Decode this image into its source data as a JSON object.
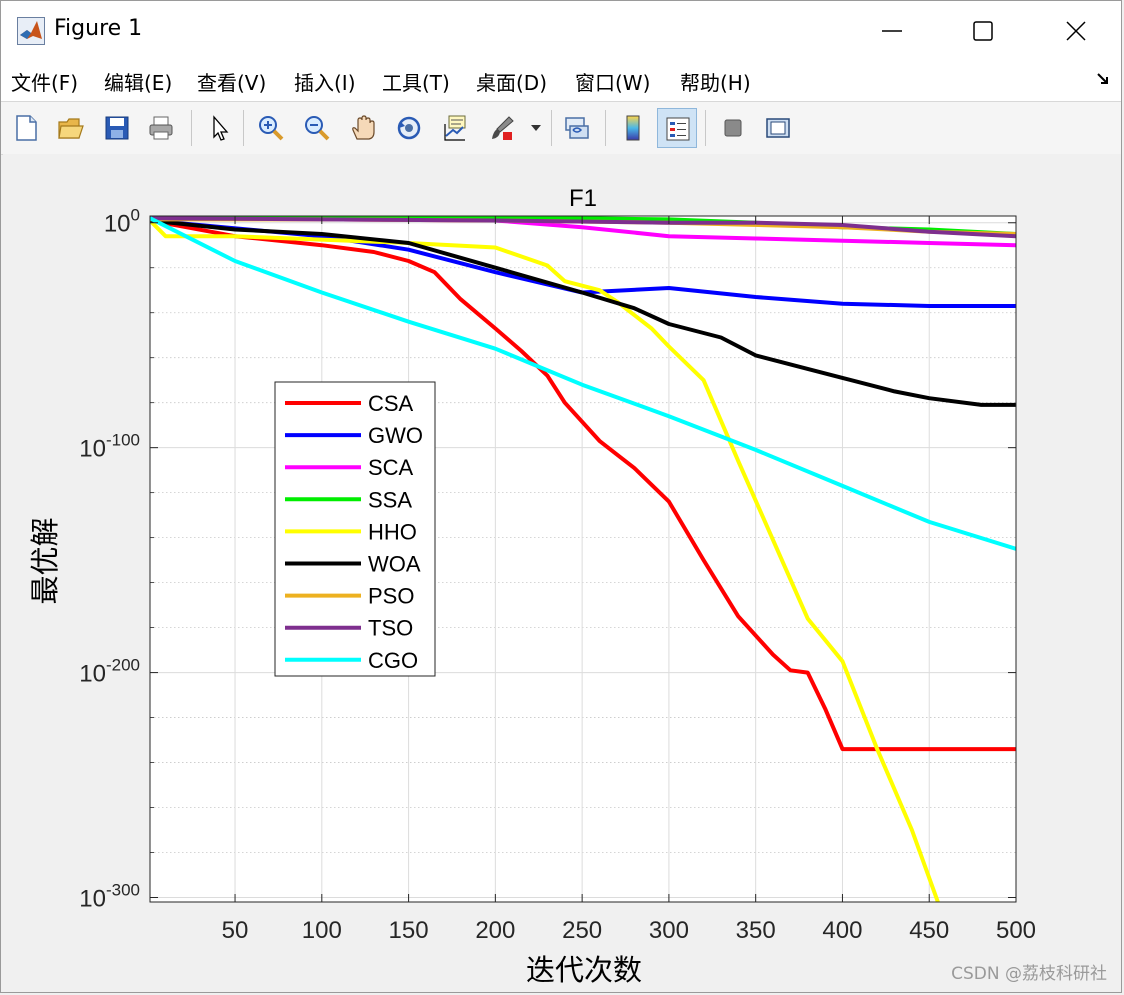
{
  "window": {
    "title": "Figure 1",
    "controls": [
      "minimize",
      "maximize",
      "close"
    ]
  },
  "menubar": {
    "items": [
      "文件(F)",
      "编辑(E)",
      "查看(V)",
      "插入(I)",
      "工具(T)",
      "桌面(D)",
      "窗口(W)",
      "帮助(H)"
    ]
  },
  "toolbar": {
    "buttons": [
      "new-figure-icon",
      "open-folder-icon",
      "save-icon",
      "print-icon",
      "pointer-icon",
      "zoom-in-icon",
      "zoom-out-icon",
      "pan-hand-icon",
      "rotate-3d-icon",
      "data-cursor-icon",
      "brush-icon",
      "brush-dropdown-icon",
      "link-plot-icon",
      "colorbar-icon",
      "legend-icon",
      "hide-plot-tools-icon",
      "show-plot-tools-icon"
    ],
    "active": "legend-icon"
  },
  "watermark": "CSDN @荔枝科研社",
  "chart_data": {
    "type": "line",
    "title": "F1",
    "xlabel": "迭代次数",
    "ylabel": "最优解",
    "xlim": [
      1,
      500
    ],
    "ylim_log10": [
      -302,
      3
    ],
    "yscale": "log",
    "xticks": [
      50,
      100,
      150,
      200,
      250,
      300,
      350,
      400,
      450,
      500
    ],
    "yticks": [
      {
        "base": "10",
        "exp": "0",
        "log10": 0
      },
      {
        "base": "10",
        "exp": "-100",
        "log10": -100
      },
      {
        "base": "10",
        "exp": "-200",
        "log10": -200
      },
      {
        "base": "10",
        "exp": "-300",
        "log10": -300
      }
    ],
    "grid": true,
    "legend_position": "upper-left-inside",
    "series": [
      {
        "name": "CSA",
        "color": "#ff0000",
        "x": [
          1,
          50,
          100,
          130,
          150,
          165,
          180,
          200,
          215,
          230,
          240,
          260,
          270,
          280,
          300,
          320,
          340,
          360,
          370,
          380,
          390,
          400,
          450,
          500
        ],
        "log10_y": [
          1,
          -6,
          -10,
          -13,
          -17,
          -22,
          -34,
          -47,
          -57,
          -68,
          -80,
          -97,
          -103,
          -109,
          -124,
          -150,
          -175,
          -192,
          -199,
          -200,
          -216,
          -234,
          -234,
          -234
        ]
      },
      {
        "name": "GWO",
        "color": "#0000ff",
        "x": [
          1,
          100,
          150,
          200,
          250,
          300,
          350,
          400,
          450,
          500
        ],
        "log10_y": [
          1,
          -6,
          -12,
          -22,
          -31,
          -29,
          -33,
          -36,
          -37,
          -37
        ]
      },
      {
        "name": "SCA",
        "color": "#ff00ff",
        "x": [
          1,
          100,
          200,
          250,
          300,
          350,
          400,
          450,
          500
        ],
        "log10_y": [
          2,
          1.5,
          1,
          -2,
          -6,
          -7,
          -8,
          -9,
          -10
        ]
      },
      {
        "name": "SSA",
        "color": "#00ee00",
        "x": [
          1,
          100,
          200,
          300,
          350,
          400,
          450,
          500
        ],
        "log10_y": [
          2.5,
          2.5,
          2.5,
          1.5,
          0,
          -2,
          -3,
          -5
        ]
      },
      {
        "name": "HHO",
        "color": "#ffff00",
        "x": [
          1,
          10,
          50,
          150,
          200,
          230,
          240,
          260,
          270,
          290,
          300,
          320,
          340,
          360,
          380,
          400,
          420,
          440,
          455
        ],
        "log10_y": [
          1,
          -6,
          -6,
          -9,
          -11,
          -19,
          -26,
          -30,
          -35,
          -47,
          -55,
          -70,
          -106,
          -141,
          -176,
          -195,
          -234,
          -270,
          -302
        ]
      },
      {
        "name": "WOA",
        "color": "#000000",
        "x": [
          1,
          50,
          100,
          150,
          200,
          250,
          280,
          300,
          330,
          350,
          380,
          400,
          430,
          450,
          480,
          500
        ],
        "log10_y": [
          1,
          -3,
          -5,
          -9,
          -20,
          -31,
          -38,
          -45,
          -51,
          -59,
          -65,
          -69,
          -75,
          -78,
          -81,
          -81
        ]
      },
      {
        "name": "PSO",
        "color": "#edb120",
        "x": [
          1,
          100,
          200,
          300,
          400,
          450,
          500
        ],
        "log10_y": [
          1.5,
          1.5,
          1,
          0,
          -2,
          -4,
          -5
        ]
      },
      {
        "name": "TSO",
        "color": "#7e2f8e",
        "x": [
          1,
          100,
          200,
          300,
          350,
          400,
          450,
          500
        ],
        "log10_y": [
          2,
          1.5,
          1,
          0,
          0,
          -1,
          -4,
          -6
        ]
      },
      {
        "name": "CGO",
        "color": "#00ffff",
        "x": [
          1,
          50,
          100,
          150,
          200,
          250,
          300,
          350,
          400,
          450,
          500
        ],
        "log10_y": [
          2,
          -17,
          -31,
          -44,
          -56,
          -72,
          -86,
          -101,
          -117,
          -133,
          -145
        ]
      }
    ]
  }
}
